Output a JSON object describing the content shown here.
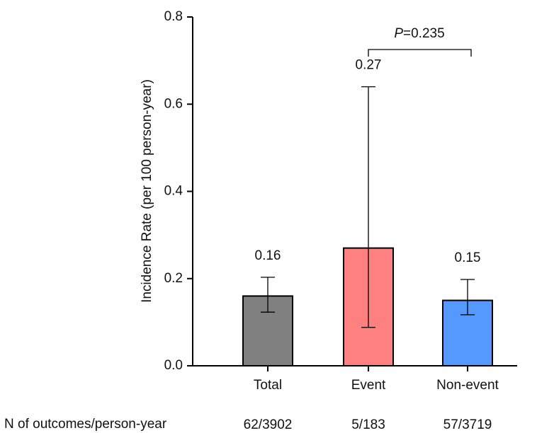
{
  "chart_data": {
    "type": "bar",
    "y_label": "Incidence Rate (per 100 person-year)",
    "categories": [
      "Total",
      "Event",
      "Non-event"
    ],
    "values": [
      0.16,
      0.27,
      0.15
    ],
    "ci_low": [
      0.123,
      0.088,
      0.117
    ],
    "ci_high": [
      0.203,
      0.64,
      0.198
    ],
    "colors": [
      "#808080",
      "#ff8080",
      "#5599ff"
    ],
    "ylim": [
      0,
      0.8
    ],
    "yticks": [
      {
        "value": 0,
        "label": "0.0"
      },
      0.2,
      0.4,
      0.6,
      0.8
    ],
    "annotation": {
      "parts": [
        "P",
        "=0.235"
      ]
    },
    "footer_row": {
      "label": "N of outcomes/person-year",
      "values": [
        "62/3902",
        "5/183",
        "57/3719"
      ]
    }
  }
}
